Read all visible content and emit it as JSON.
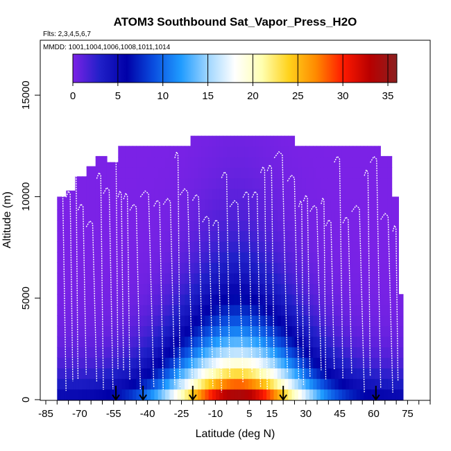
{
  "chart_data": {
    "type": "heatmap",
    "title": "ATOM3 Southbound Sat_Vapor_Press_H2O",
    "subtitle_flights": "Flts: 2,3,4,5,6,7",
    "subtitle_dates": "MMDD: 1001,1004,1006,1008,1011,1014",
    "xlabel": "Latitude (deg N)",
    "ylabel": "Altitude (m)",
    "xlim": [
      -85,
      85
    ],
    "ylim": [
      0,
      17500
    ],
    "x_ticks": [
      -85,
      -70,
      -55,
      -40,
      -25,
      -10,
      5,
      15,
      30,
      45,
      60,
      75
    ],
    "x_minor_ticks": [
      -80,
      -75,
      -65,
      -60,
      -50,
      -45,
      -35,
      -30,
      -20,
      -15,
      -5,
      0,
      10,
      20,
      25,
      35,
      40,
      50,
      55,
      65,
      70,
      80,
      85
    ],
    "y_ticks": [
      0,
      5000,
      10000,
      15000
    ],
    "colorbar": {
      "min": 0,
      "max": 36,
      "ticks": [
        0,
        5,
        10,
        15,
        20,
        25,
        30,
        35
      ],
      "colors": [
        "#7b22e6",
        "#2020c8",
        "#0000a8",
        "#0a4fe0",
        "#1f9bff",
        "#9fd6ff",
        "#ffffff",
        "#ffffb0",
        "#ffd21c",
        "#ff8a00",
        "#ff1a00",
        "#b80000",
        "#8b2020"
      ]
    },
    "flight_markers_lat": [
      -54,
      -42,
      -20,
      20,
      61
    ],
    "columns": [
      {
        "lat": [
          -80,
          -76
        ],
        "top": 10000
      },
      {
        "lat": [
          -76,
          -72
        ],
        "top": 10300
      },
      {
        "lat": [
          -72,
          -67
        ],
        "top": 11000
      },
      {
        "lat": [
          -67,
          -63
        ],
        "top": 11500
      },
      {
        "lat": [
          -63,
          -58
        ],
        "top": 12000
      },
      {
        "lat": [
          -58,
          -53
        ],
        "top": 11700
      },
      {
        "lat": [
          -53,
          -30
        ],
        "top": 12500
      },
      {
        "lat": [
          -30,
          -21
        ],
        "top": 12500
      },
      {
        "lat": [
          -21,
          25
        ],
        "top": 13000
      },
      {
        "lat": [
          25,
          30
        ],
        "top": 12500
      },
      {
        "lat": [
          30,
          63
        ],
        "top": 12500
      },
      {
        "lat": [
          63,
          68
        ],
        "top": 12000
      },
      {
        "lat": [
          68,
          71
        ],
        "top": 10000
      },
      {
        "lat": [
          71,
          73
        ],
        "top": 5200
      }
    ]
  }
}
